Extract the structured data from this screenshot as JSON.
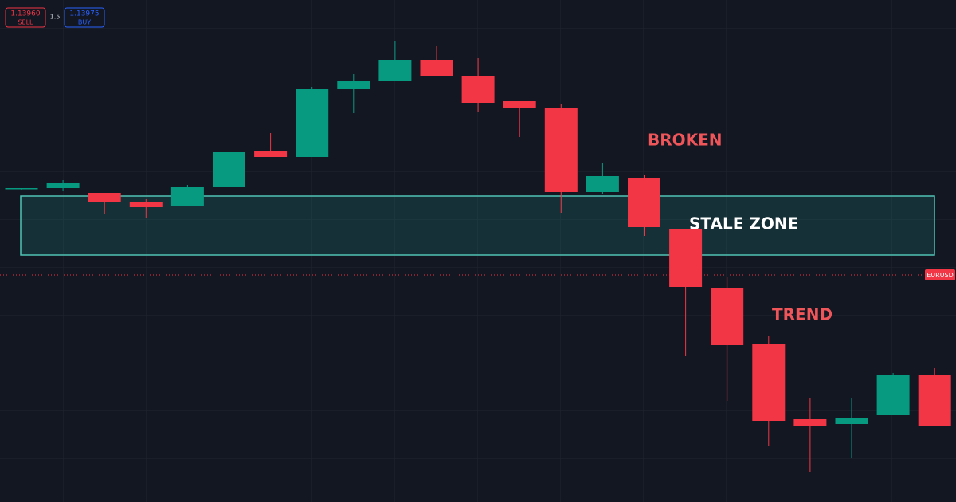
{
  "header": {
    "sell_price": "1.13960",
    "sell_label": "SELL",
    "spread": "1.5",
    "buy_price": "1.13975",
    "buy_label": "BUY"
  },
  "chart_data": {
    "type": "candlestick",
    "open": [
      393,
      394,
      388,
      377,
      371,
      395,
      441,
      433,
      518,
      528,
      555,
      534,
      503,
      495,
      389,
      407,
      343,
      269,
      198,
      104,
      98,
      109,
      160
    ],
    "close": [
      394,
      400,
      377,
      370,
      395,
      439,
      433,
      518,
      528,
      555,
      535,
      501,
      494,
      389,
      409,
      345,
      270,
      197,
      102,
      96,
      106,
      160,
      95
    ],
    "high": [
      394,
      404,
      388,
      380,
      398,
      443,
      463,
      521,
      537,
      578,
      572,
      557,
      503,
      500,
      425,
      410,
      343,
      282,
      208,
      130,
      131,
      162,
      168
    ],
    "low": [
      392,
      390,
      362,
      356,
      371,
      388,
      433,
      433,
      488,
      528,
      535,
      490,
      458,
      363,
      386,
      334,
      183,
      127,
      70,
      38,
      55,
      109,
      95
    ],
    "ylim": [
      0,
      630
    ],
    "zone": {
      "label": "STALE ZONE",
      "range": [
        310,
        384
      ]
    },
    "annotations": [
      "BROKEN",
      "TREND"
    ],
    "symbol_label": "EURUSD",
    "up_color": "#089981",
    "down_color": "#f23645"
  }
}
